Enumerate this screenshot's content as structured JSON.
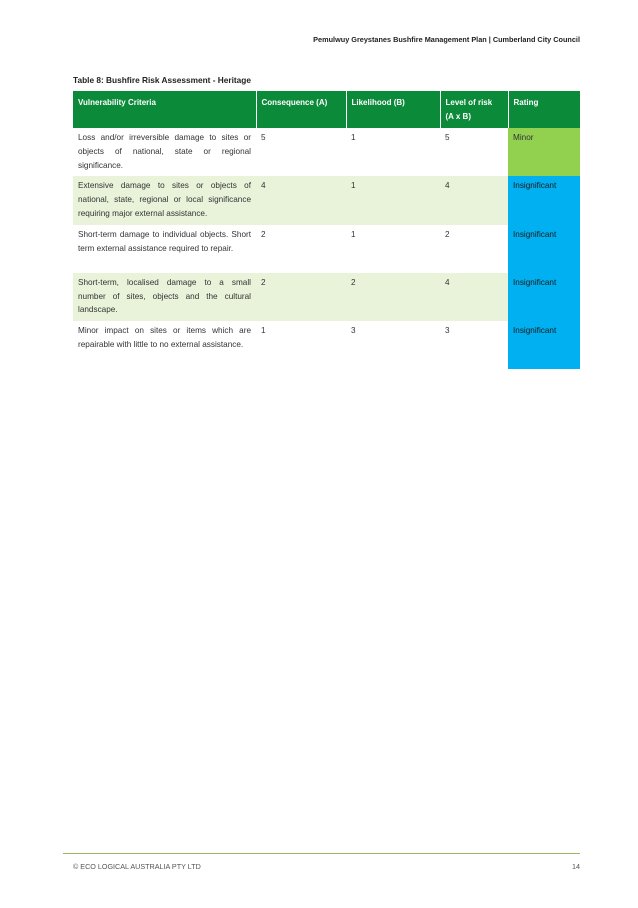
{
  "header": {
    "running_title": "Pemulwuy Greystanes Bushfire Management Plan | Cumberland City Council"
  },
  "table": {
    "caption": "Table 8: Bushfire Risk Assessment - Heritage",
    "columns": [
      "Vulnerability Criteria",
      "Consequence (A)",
      "Likelihood (B)",
      "Level of risk (A x B)",
      "Rating"
    ],
    "rows": [
      {
        "criteria": "Loss and/or irreversible damage to sites or objects of national, state or regional significance.",
        "consequence": "5",
        "likelihood": "1",
        "level": "5",
        "rating": "Minor"
      },
      {
        "criteria": "Extensive damage to sites or objects of national, state, regional or local significance requiring major external assistance.",
        "consequence": "4",
        "likelihood": "1",
        "level": "4",
        "rating": "Insignificant"
      },
      {
        "criteria": "Short-term damage to individual objects. Short term external assistance required to repair.",
        "consequence": "2",
        "likelihood": "1",
        "level": "2",
        "rating": "Insignificant"
      },
      {
        "criteria": "Short-term, localised damage to a small number of sites, objects and the cultural landscape.",
        "consequence": "2",
        "likelihood": "2",
        "level": "4",
        "rating": "Insignificant"
      },
      {
        "criteria": "Minor impact on sites or items which are repairable with little to no external assistance.",
        "consequence": "1",
        "likelihood": "3",
        "level": "3",
        "rating": "Insignificant"
      }
    ]
  },
  "colors": {
    "header_green": "#0b8a3a",
    "row_shade": "#e8f3da",
    "rating_minor": "#92d050",
    "rating_insignificant": "#00b0f0"
  },
  "footer": {
    "copyright": "© ECO LOGICAL AUSTRALIA PTY LTD",
    "page_number": "14"
  }
}
